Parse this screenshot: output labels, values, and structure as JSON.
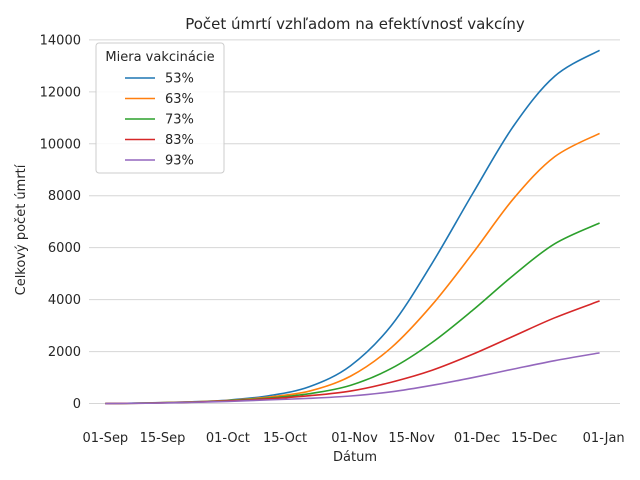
{
  "chart_data": {
    "type": "line",
    "title": "Počet úmrtí vzhľadom na efektívnosť vakcíny",
    "xlabel": "Dátum",
    "ylabel": "Celkový počet úmrtí",
    "x_ticks": [
      "01-Sep",
      "15-Sep",
      "01-Oct",
      "15-Oct",
      "01-Nov",
      "15-Nov",
      "01-Dec",
      "15-Dec",
      "01-Jan"
    ],
    "x_range": [
      "2021-08-28",
      "2022-01-05"
    ],
    "y_ticks": [
      0,
      2000,
      4000,
      6000,
      8000,
      10000,
      12000,
      14000
    ],
    "ylim": [
      -750,
      14150
    ],
    "grid": "horizontal",
    "legend": {
      "title": "Miera vakcinácie",
      "position": "top-left"
    },
    "x": [
      "2021-09-01",
      "2021-09-11",
      "2021-09-21",
      "2021-10-01",
      "2021-10-11",
      "2021-10-21",
      "2021-10-31",
      "2021-11-10",
      "2021-11-20",
      "2021-11-30",
      "2021-12-10",
      "2021-12-20",
      "2021-12-31"
    ],
    "series": [
      {
        "name": "53%",
        "color": "#1f77b4",
        "values": [
          0,
          20,
          60,
          130,
          300,
          650,
          1450,
          3000,
          5400,
          8100,
          10700,
          12600,
          13600
        ]
      },
      {
        "name": "63%",
        "color": "#ff7f0e",
        "values": [
          0,
          18,
          55,
          120,
          250,
          480,
          1050,
          2150,
          3800,
          5800,
          7900,
          9500,
          10400
        ]
      },
      {
        "name": "73%",
        "color": "#2ca02c",
        "values": [
          0,
          16,
          50,
          110,
          210,
          380,
          700,
          1350,
          2350,
          3600,
          4950,
          6150,
          6950
        ]
      },
      {
        "name": "83%",
        "color": "#d62728",
        "values": [
          0,
          14,
          45,
          100,
          180,
          300,
          480,
          820,
          1280,
          1900,
          2600,
          3300,
          3950
        ]
      },
      {
        "name": "93%",
        "color": "#9467bd",
        "values": [
          0,
          12,
          40,
          80,
          140,
          200,
          290,
          450,
          700,
          1000,
          1330,
          1650,
          1950
        ]
      }
    ]
  }
}
